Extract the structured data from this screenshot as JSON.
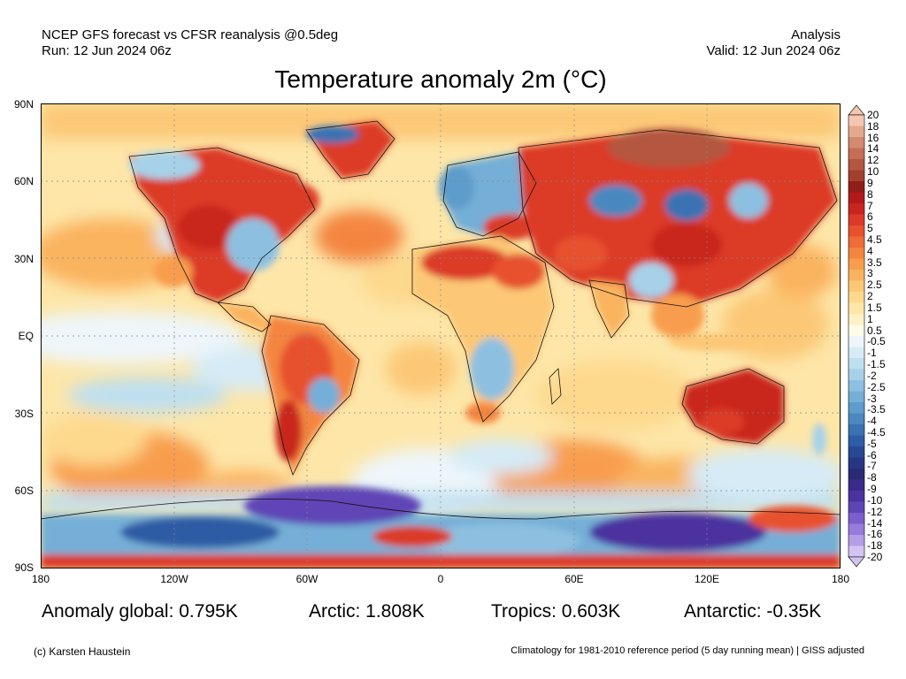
{
  "header": {
    "left_line1": "NCEP GFS forecast vs CFSR reanalysis @0.5deg",
    "left_line2": "Run: 12 Jun 2024 06z",
    "right_line1": "Analysis",
    "right_line2": "Valid: 12 Jun 2024 06z"
  },
  "title": "Temperature anomaly 2m (°C)",
  "lat_labels": [
    "90N",
    "60N",
    "30N",
    "EQ",
    "30S",
    "60S",
    "90S"
  ],
  "lon_labels": [
    "180",
    "120W",
    "60W",
    "0",
    "60E",
    "120E",
    "180"
  ],
  "colorbar": {
    "labels": [
      "20",
      "18",
      "16",
      "14",
      "12",
      "10",
      "9",
      "8",
      "7",
      "6",
      "5",
      "4.5",
      "4",
      "3.5",
      "3",
      "2.5",
      "2",
      "1.5",
      "1",
      "0.5",
      "-0.5",
      "-1",
      "-1.5",
      "-2",
      "-2.5",
      "-3",
      "-3.5",
      "-4",
      "-4.5",
      "-5",
      "-6",
      "-7",
      "-8",
      "-9",
      "-10",
      "-12",
      "-14",
      "-16",
      "-18",
      "-20"
    ],
    "colors": [
      "#f5c6b2",
      "#e3a88e",
      "#d38a70",
      "#c46e55",
      "#b45640",
      "#a2402e",
      "#8e1f17",
      "#b2191c",
      "#c9251f",
      "#dc3a28",
      "#e7512e",
      "#ef6b37",
      "#f4853f",
      "#f89d4d",
      "#fab35f",
      "#fcc876",
      "#fdd98e",
      "#fde6a8",
      "#fff1c6",
      "#fffbe8",
      "#eef6fb",
      "#d6ebf6",
      "#bedff0",
      "#a6d1e9",
      "#8dc0e0",
      "#75afd7",
      "#5d9ccb",
      "#4a88bf",
      "#3a72b2",
      "#2f5ca4",
      "#284894",
      "#253784",
      "#2a2a74",
      "#3a2a8a",
      "#4b339f",
      "#5e45b6",
      "#7a5fcc",
      "#977cdc",
      "#b39ee8",
      "#d2c3f2"
    ]
  },
  "stats": {
    "global": "Anomaly global: 0.795K",
    "arctic": "Arctic: 1.808K",
    "tropics": "Tropics: 0.603K",
    "antarctic": "Antarctic: -0.35K"
  },
  "footer": {
    "left": "(c) Karsten Haustein",
    "right": "Climatology for 1981-2010 reference period (5 day running mean) | GISS adjusted"
  }
}
